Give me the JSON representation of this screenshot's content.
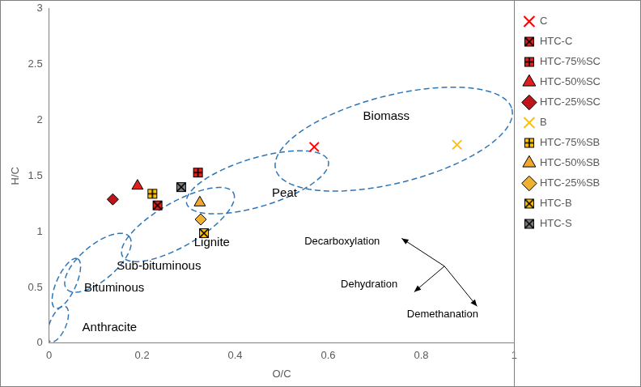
{
  "chart_data": {
    "type": "scatter",
    "xlabel": "O/C",
    "ylabel": "H/C",
    "xlim": [
      0,
      1
    ],
    "ylim": [
      0,
      3
    ],
    "xticks": [
      0,
      0.2,
      0.4,
      0.6,
      0.8,
      1
    ],
    "yticks": [
      0,
      0.5,
      1,
      1.5,
      2,
      2.5,
      3
    ],
    "grid": false,
    "legend": "right",
    "series": [
      {
        "name": "C",
        "color": "#ff0000",
        "marker": "x",
        "x": [
          0.57
        ],
        "y": [
          1.76
        ]
      },
      {
        "name": "HTC-C",
        "color": "#e0201e",
        "marker": "square_x",
        "x": [
          0.233
        ],
        "y": [
          1.236
        ]
      },
      {
        "name": "HTC-75%SC",
        "color": "#e0201e",
        "marker": "square_plus",
        "x": [
          0.32
        ],
        "y": [
          1.53
        ]
      },
      {
        "name": "HTC-50%SC",
        "color": "#e0201e",
        "marker": "triangle",
        "x": [
          0.19
        ],
        "y": [
          1.41
        ]
      },
      {
        "name": "HTC-25%SC",
        "color": "#c0141a",
        "marker": "diamond",
        "x": [
          0.137
        ],
        "y": [
          1.29
        ]
      },
      {
        "name": "B",
        "color": "#ffc000",
        "marker": "x",
        "x": [
          0.877
        ],
        "y": [
          1.78
        ]
      },
      {
        "name": "HTC-75%SB",
        "color": "#ffc000",
        "marker": "square_plus",
        "x": [
          0.222
        ],
        "y": [
          1.34
        ]
      },
      {
        "name": "HTC-50%SB",
        "color": "#f0a830",
        "marker": "triangle",
        "x": [
          0.324
        ],
        "y": [
          1.26
        ]
      },
      {
        "name": "HTC-25%SB",
        "color": "#f0b030",
        "marker": "diamond",
        "x": [
          0.326
        ],
        "y": [
          1.11
        ]
      },
      {
        "name": "HTC-B",
        "color": "#ffc000",
        "marker": "square_x",
        "x": [
          0.333
        ],
        "y": [
          0.986
        ]
      },
      {
        "name": "HTC-S",
        "color": "#808080",
        "marker": "square_x",
        "x": [
          0.284
        ],
        "y": [
          1.4
        ]
      }
    ],
    "regions": [
      {
        "label": "Biomass",
        "center": [
          0.741,
          1.83
        ],
        "major_end": [
          0.995,
          2.1
        ],
        "minor_end": [
          0.765,
          1.45
        ],
        "label_at": [
          0.725,
          2.03
        ]
      },
      {
        "label": "Peat",
        "center": [
          0.448,
          1.443
        ],
        "major_end": [
          0.6,
          1.636
        ],
        "minor_end": [
          0.464,
          1.236
        ],
        "label_at": [
          0.506,
          1.34
        ]
      },
      {
        "label": "Lignite",
        "center": [
          0.277,
          1.064
        ],
        "major_end": [
          0.396,
          1.35
        ],
        "minor_end": [
          0.301,
          0.893
        ],
        "label_at": [
          0.35,
          0.9
        ]
      },
      {
        "label": "Sub-bituminous",
        "center": [
          0.105,
          0.721
        ],
        "major_end": [
          0.172,
          0.957
        ],
        "minor_end": [
          0.13,
          0.602
        ],
        "label_at": [
          0.236,
          0.69
        ]
      },
      {
        "label": "Bituminous",
        "center": [
          0.037,
          0.536
        ],
        "major_end": [
          0.061,
          0.757
        ],
        "minor_end": [
          0.056,
          0.5
        ],
        "label_at": [
          0.14,
          0.49
        ]
      },
      {
        "label": "Anthracite",
        "center": [
          0.019,
          0.171
        ],
        "major_end": [
          0.035,
          0.329
        ],
        "minor_end": [
          0.035,
          0.143
        ],
        "label_at": [
          0.13,
          0.14
        ]
      }
    ],
    "arrows": [
      {
        "label": "Decarboxylation",
        "from": [
          0.85,
          0.69
        ],
        "to": [
          0.758,
          0.94
        ],
        "label_at": [
          0.63,
          0.914
        ]
      },
      {
        "label": "Dehydration",
        "from": [
          0.85,
          0.69
        ],
        "to": [
          0.785,
          0.46
        ],
        "label_at": [
          0.688,
          0.529
        ]
      },
      {
        "label": "Demethanation",
        "from": [
          0.85,
          0.69
        ],
        "to": [
          0.92,
          0.33
        ],
        "label_at": [
          0.846,
          0.257
        ]
      }
    ]
  }
}
